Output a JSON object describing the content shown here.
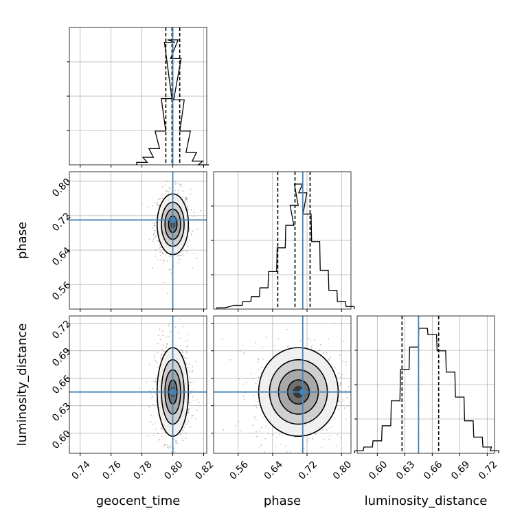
{
  "colors": {
    "truth": "#4682b4",
    "hist": "#000000",
    "grid": "#b0b0b0",
    "points": "#444444"
  },
  "chart_data": {
    "type": "corner",
    "parameters": [
      "geocent_time",
      "phase",
      "luminosity_distance"
    ],
    "axis_labels": {
      "x": [
        "geocent_time",
        "phase",
        "luminosity_distance"
      ],
      "y": [
        "phase",
        "luminosity_distance"
      ]
    },
    "ranges": {
      "geocent_time": [
        0.733,
        0.822
      ],
      "phase": [
        0.503,
        0.822
      ],
      "luminosity_distance": [
        0.578,
        0.728
      ]
    },
    "ticks": {
      "geocent_time": [
        "0.74",
        "0.76",
        "0.78",
        "0.80",
        "0.82"
      ],
      "phase": [
        "0.56",
        "0.64",
        "0.72",
        "0.80"
      ],
      "luminosity_distance": [
        "0.60",
        "0.63",
        "0.66",
        "0.69",
        "0.72"
      ]
    },
    "truths": {
      "geocent_time": 0.8,
      "phase": 0.71,
      "luminosity_distance": 0.645
    },
    "quantiles": {
      "geocent_time": [
        0.7955,
        0.7995,
        0.8045
      ],
      "phase": [
        0.652,
        0.692,
        0.727
      ],
      "luminosity_distance": [
        0.627,
        0.645,
        0.667
      ]
    },
    "marginals": {
      "geocent_time": [
        [
          0.78,
          0.02
        ],
        [
          0.784,
          0.06
        ],
        [
          0.788,
          0.13
        ],
        [
          0.792,
          0.27
        ],
        [
          0.796,
          0.53
        ],
        [
          0.798,
          0.98
        ],
        [
          0.8,
          1.0
        ],
        [
          0.802,
          0.85
        ],
        [
          0.804,
          0.52
        ],
        [
          0.808,
          0.27
        ],
        [
          0.812,
          0.1
        ],
        [
          0.816,
          0.03
        ],
        [
          0.82,
          0.0
        ]
      ],
      "phase": [
        [
          0.52,
          0.01
        ],
        [
          0.56,
          0.03
        ],
        [
          0.58,
          0.06
        ],
        [
          0.6,
          0.1
        ],
        [
          0.62,
          0.17
        ],
        [
          0.64,
          0.3
        ],
        [
          0.66,
          0.49
        ],
        [
          0.68,
          0.67
        ],
        [
          0.69,
          0.83
        ],
        [
          0.7,
          1.0
        ],
        [
          0.71,
          0.93
        ],
        [
          0.72,
          0.76
        ],
        [
          0.74,
          0.54
        ],
        [
          0.76,
          0.31
        ],
        [
          0.78,
          0.15
        ],
        [
          0.8,
          0.06
        ],
        [
          0.82,
          0.02
        ]
      ],
      "luminosity_distance": [
        [
          0.58,
          0.02
        ],
        [
          0.59,
          0.05
        ],
        [
          0.6,
          0.1
        ],
        [
          0.61,
          0.22
        ],
        [
          0.62,
          0.42
        ],
        [
          0.63,
          0.67
        ],
        [
          0.64,
          0.85
        ],
        [
          0.65,
          1.0
        ],
        [
          0.66,
          0.95
        ],
        [
          0.67,
          0.82
        ],
        [
          0.68,
          0.65
        ],
        [
          0.69,
          0.45
        ],
        [
          0.7,
          0.26
        ],
        [
          0.71,
          0.13
        ],
        [
          0.72,
          0.05
        ],
        [
          0.728,
          0.02
        ]
      ]
    },
    "joint": [
      {
        "x": "geocent_time",
        "y": "phase",
        "mean": [
          0.8,
          0.7
        ],
        "sd": [
          0.0046,
          0.032
        ]
      },
      {
        "x": "geocent_time",
        "y": "luminosity_distance",
        "mean": [
          0.8,
          0.645
        ],
        "sd": [
          0.0046,
          0.022
        ]
      },
      {
        "x": "phase",
        "y": "luminosity_distance",
        "mean": [
          0.7,
          0.645
        ],
        "sd": [
          0.042,
          0.022
        ]
      }
    ]
  }
}
